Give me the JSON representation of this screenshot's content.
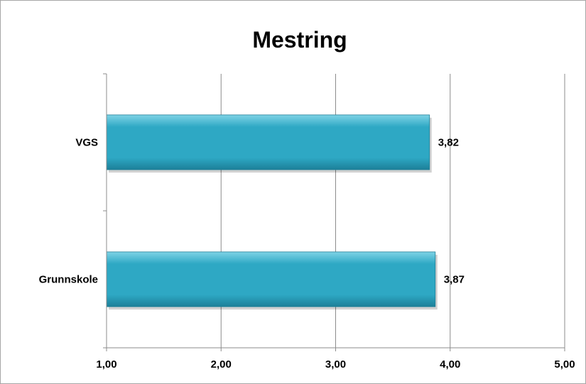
{
  "chart_data": {
    "type": "bar",
    "orientation": "horizontal",
    "title": "Mestring",
    "categories": [
      "VGS",
      "Grunnskole"
    ],
    "values": [
      3.82,
      3.87
    ],
    "data_labels": [
      "3,82",
      "3,87"
    ],
    "xlim": [
      1,
      5
    ],
    "x_ticks": [
      1,
      2,
      3,
      4,
      5
    ],
    "x_tick_labels": [
      "1,00",
      "2,00",
      "3,00",
      "4,00",
      "5,00"
    ],
    "grid": true,
    "legend": "none",
    "bar_color": "#2ea8c4",
    "bar_highlight": "#7fd3e6",
    "bar_shadow": "#1c7f98"
  }
}
